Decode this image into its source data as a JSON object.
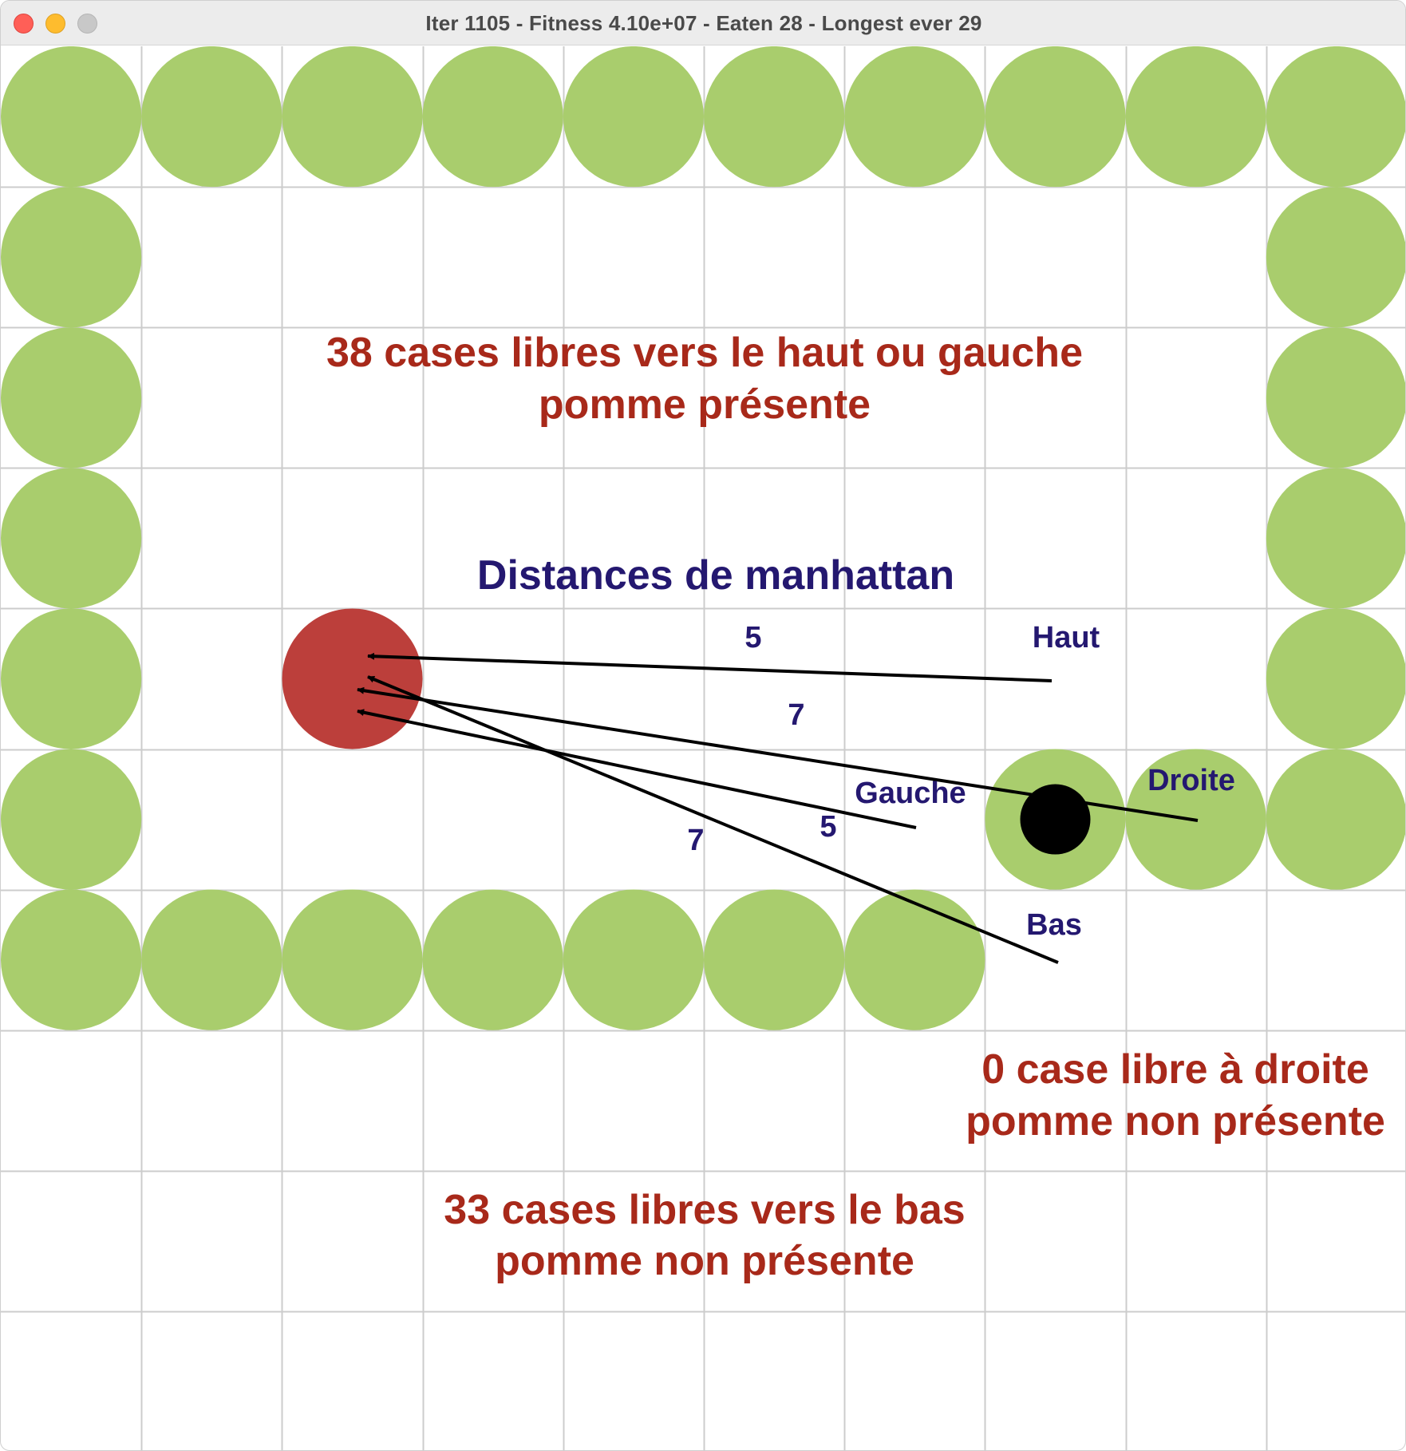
{
  "window": {
    "title": "Iter 1105 - Fitness 4.10e+07 - Eaten 28 - Longest ever 29",
    "controls": [
      "close-button",
      "minimize-button",
      "zoom-button"
    ]
  },
  "colors": {
    "snake_body": "#a9cd6d",
    "snake_head": "#000000",
    "apple": "#bc3f3b",
    "grid_line": "#cccccc",
    "annotation_red": "#a8291a",
    "annotation_blue": "#241870",
    "arrow": "#000000"
  },
  "board": {
    "cols": 10,
    "rows": 10,
    "snake_body_cells": [
      [
        0,
        0
      ],
      [
        1,
        0
      ],
      [
        2,
        0
      ],
      [
        3,
        0
      ],
      [
        4,
        0
      ],
      [
        5,
        0
      ],
      [
        6,
        0
      ],
      [
        7,
        0
      ],
      [
        8,
        0
      ],
      [
        9,
        0
      ],
      [
        0,
        1
      ],
      [
        9,
        1
      ],
      [
        0,
        2
      ],
      [
        9,
        2
      ],
      [
        0,
        3
      ],
      [
        9,
        3
      ],
      [
        0,
        4
      ],
      [
        9,
        4
      ],
      [
        0,
        5
      ],
      [
        9,
        5
      ],
      [
        8,
        5
      ],
      [
        7,
        5
      ],
      [
        0,
        6
      ],
      [
        1,
        6
      ],
      [
        2,
        6
      ],
      [
        3,
        6
      ],
      [
        4,
        6
      ],
      [
        5,
        6
      ],
      [
        6,
        6
      ]
    ],
    "snake_head_cell": [
      7,
      5
    ],
    "apple_cell": [
      2,
      4
    ]
  },
  "annotations": {
    "top_region_line1": "38 cases libres vers le haut ou gauche",
    "top_region_line2": "pomme présente",
    "right_region_line1": "0 case libre à droite",
    "right_region_line2": "pomme non présente",
    "bottom_region_line1": "33 cases libres vers le bas",
    "bottom_region_line2": "pomme non présente",
    "distances_title": "Distances de manhattan"
  },
  "distances": {
    "haut": {
      "label": "Haut",
      "value": "5"
    },
    "droite": {
      "label": "Droite",
      "value": "7"
    },
    "gauche": {
      "label": "Gauche",
      "value": "5"
    },
    "bas": {
      "label": "Bas",
      "value": "7"
    }
  }
}
